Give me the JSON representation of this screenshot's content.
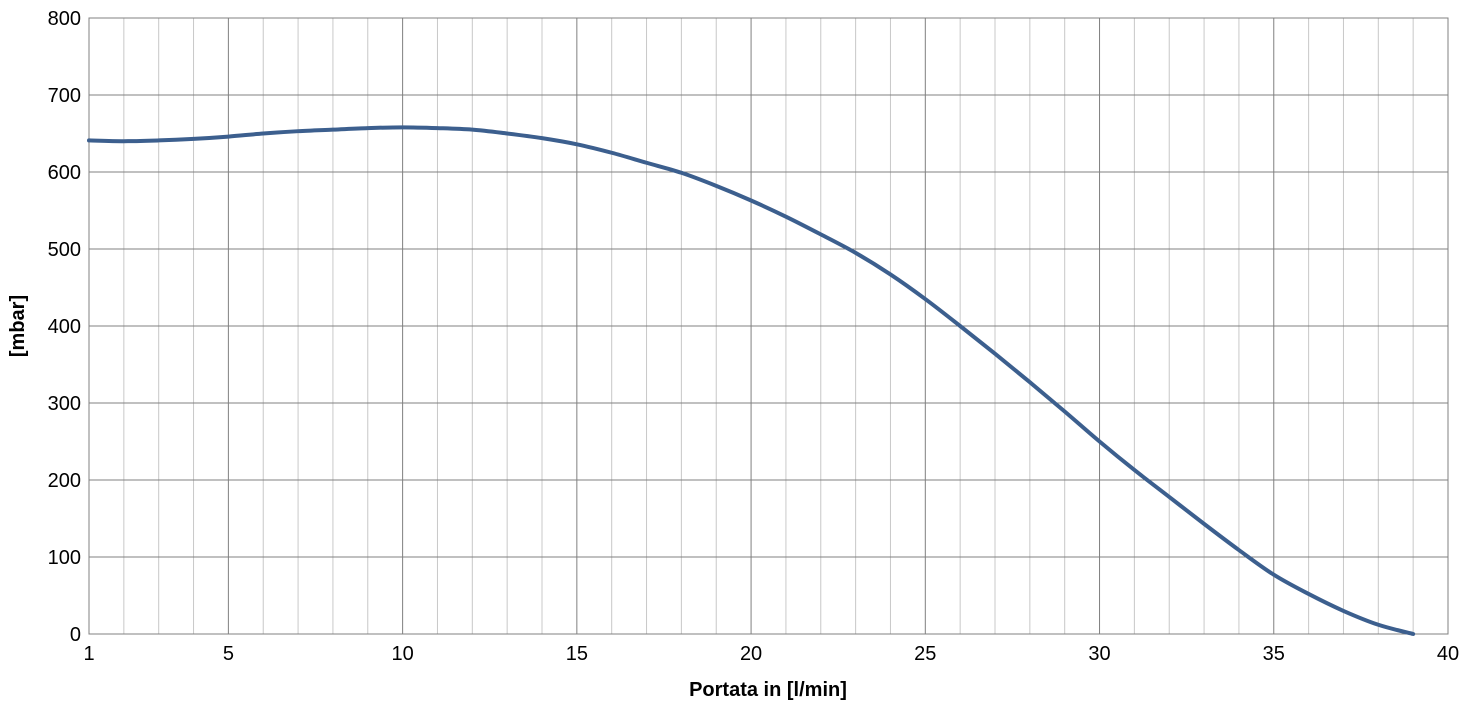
{
  "chart_data": {
    "type": "line",
    "title": "",
    "xlabel": "Portata in [l/min]",
    "ylabel": "[mbar]",
    "xlim": [
      1,
      40
    ],
    "ylim": [
      0,
      800
    ],
    "x_ticks": [
      1,
      5,
      10,
      15,
      20,
      25,
      30,
      35,
      40
    ],
    "x_minor_gridlines": [
      2,
      3,
      4,
      6,
      7,
      8,
      9,
      11,
      12,
      13,
      14,
      16,
      17,
      18,
      19,
      21,
      22,
      23,
      24,
      26,
      27,
      28,
      29,
      31,
      32,
      33,
      34,
      36,
      37,
      38,
      39
    ],
    "y_ticks": [
      0,
      100,
      200,
      300,
      400,
      500,
      600,
      700,
      800
    ],
    "grid": true,
    "legend": "none",
    "series": [
      {
        "color": "#3C5F8E",
        "x": [
          1,
          2,
          3,
          4,
          5,
          6,
          7,
          8,
          9,
          10,
          11,
          12,
          13,
          14,
          15,
          16,
          17,
          18,
          19,
          20,
          21,
          22,
          23,
          24,
          25,
          26,
          27,
          28,
          29,
          30,
          31,
          32,
          33,
          34,
          35,
          36,
          37,
          38,
          39
        ],
        "y": [
          641,
          640,
          641,
          643,
          646,
          650,
          653,
          655,
          657,
          658,
          657,
          655,
          650,
          644,
          636,
          625,
          612,
          599,
          582,
          563,
          542,
          519,
          495,
          467,
          435,
          400,
          364,
          327,
          289,
          250,
          213,
          178,
          143,
          109,
          77,
          52,
          30,
          12,
          0
        ]
      }
    ],
    "colors": {
      "line": "#3C5F8E",
      "major_grid": "#808080",
      "minor_grid": "#C8C8C8",
      "frame": "#808080"
    }
  }
}
